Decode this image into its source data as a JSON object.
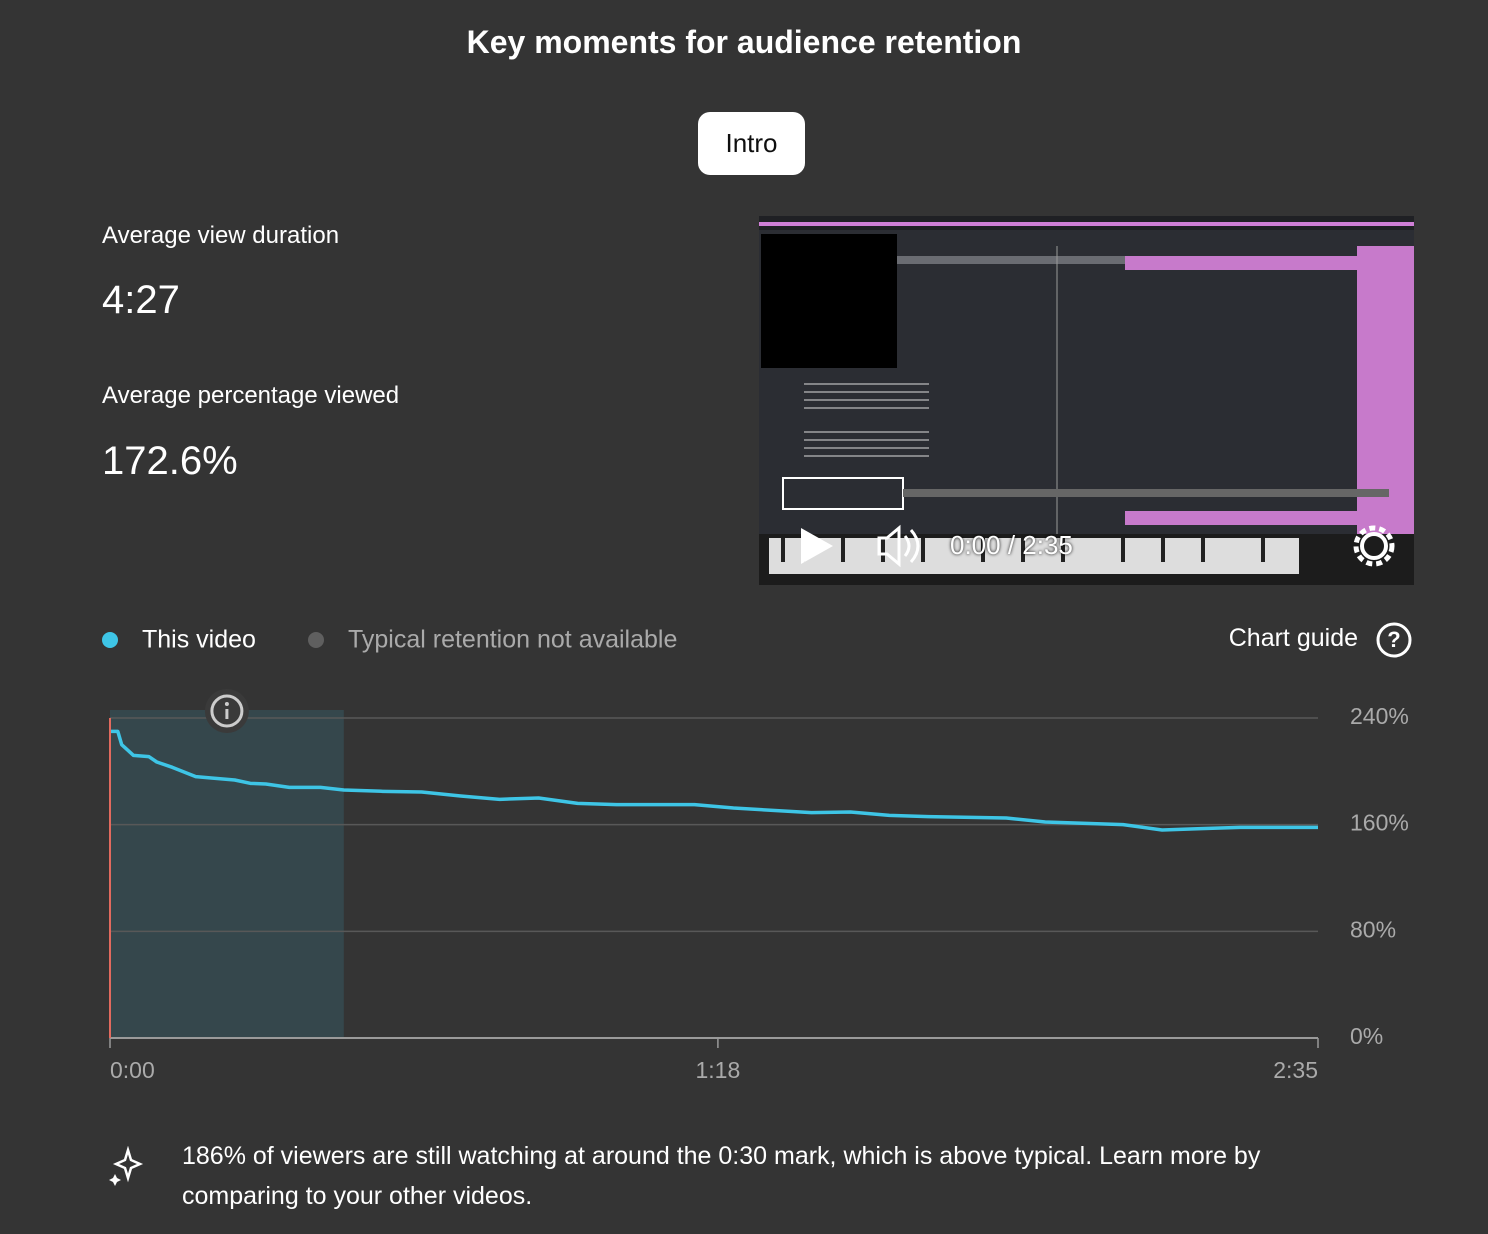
{
  "header": {
    "title": "Key moments for audience retention",
    "tab": "Intro"
  },
  "stats": [
    {
      "label": "Average view duration",
      "value": "4:27"
    },
    {
      "label": "Average percentage viewed",
      "value": "172.6%"
    }
  ],
  "video": {
    "time": "0:00 / 2:35"
  },
  "chart_guide": "Chart guide",
  "chart_data": {
    "type": "line",
    "x": [
      0,
      1,
      1.5,
      3,
      5,
      6,
      8,
      11,
      13,
      16,
      18,
      20,
      23,
      27,
      30,
      35,
      40,
      45,
      50,
      55,
      60,
      65,
      75,
      80,
      90,
      95,
      100,
      105,
      115,
      120,
      130,
      135,
      140,
      145,
      155
    ],
    "series": [
      {
        "name": "This video",
        "color": "#3ec5e6",
        "values": [
          230,
          230,
          220,
          212,
          211,
          207,
          203,
          196,
          195,
          193.5,
          191,
          190.5,
          188,
          188,
          186,
          185,
          184.5,
          181.5,
          179,
          180,
          176,
          175,
          175,
          172.5,
          169,
          169.5,
          167,
          166,
          165,
          162,
          160,
          156,
          157,
          158,
          158
        ]
      }
    ],
    "typical_label": "Typical retention not available",
    "typical_color": "#5f5f5f",
    "highlight": [
      0,
      30
    ],
    "playhead": 0,
    "xlim": [
      0,
      155
    ],
    "xticks": [
      {
        "value": 0,
        "label": "0:00"
      },
      {
        "value": 78,
        "label": "1:18"
      },
      {
        "value": 155,
        "label": "2:35"
      }
    ],
    "ylim": [
      0,
      240
    ],
    "yticks": [
      {
        "value": 0,
        "label": "0%"
      },
      {
        "value": 80,
        "label": "80%"
      },
      {
        "value": 160,
        "label": "160%"
      },
      {
        "value": 240,
        "label": "240%"
      }
    ],
    "grid": true
  },
  "insight": "186% of viewers are still watching at around the 0:30 mark, which is above typical. Learn more by comparing to your other videos."
}
